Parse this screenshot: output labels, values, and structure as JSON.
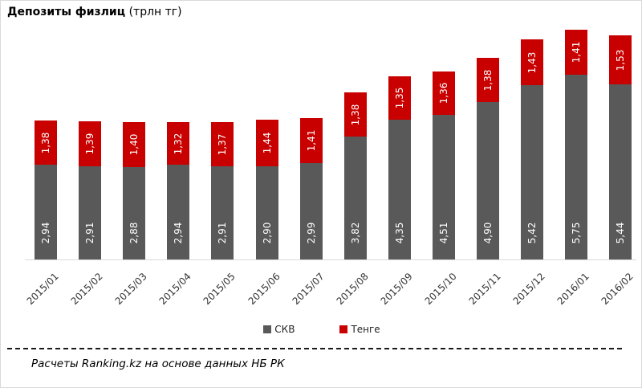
{
  "title": {
    "main": "Депозиты физлиц",
    "unit": "(трлн тг)"
  },
  "chart_data": {
    "type": "bar",
    "stacked": true,
    "title": "Депозиты физлиц (трлн тг)",
    "xlabel": "",
    "ylabel": "трлн тг",
    "ylim": [
      0,
      8
    ],
    "grid": false,
    "legend_position": "bottom",
    "categories": [
      "2015/01",
      "2015/02",
      "2015/03",
      "2015/04",
      "2015/05",
      "2015/06",
      "2015/07",
      "2015/08",
      "2015/09",
      "2015/10",
      "2015/11",
      "2015/12",
      "2016/01",
      "2016/02"
    ],
    "series": [
      {
        "name": "СКВ",
        "color": "#595959",
        "values": [
          2.94,
          2.91,
          2.88,
          2.94,
          2.91,
          2.9,
          2.99,
          3.82,
          4.35,
          4.51,
          4.9,
          5.42,
          5.75,
          5.44
        ],
        "labels": [
          "2,94",
          "2,91",
          "2,88",
          "2,94",
          "2,91",
          "2,90",
          "2,99",
          "3,82",
          "4,35",
          "4,51",
          "4,90",
          "5,42",
          "5,75",
          "5,44"
        ]
      },
      {
        "name": "Тенге",
        "color": "#C80000",
        "values": [
          1.38,
          1.39,
          1.4,
          1.32,
          1.37,
          1.44,
          1.41,
          1.38,
          1.35,
          1.36,
          1.38,
          1.43,
          1.41,
          1.53
        ],
        "labels": [
          "1,38",
          "1,39",
          "1,40",
          "1,32",
          "1,37",
          "1,44",
          "1,41",
          "1,38",
          "1,35",
          "1,36",
          "1,38",
          "1,43",
          "1,41",
          "1,53"
        ]
      }
    ]
  },
  "legend": {
    "items": [
      {
        "label": "СКВ",
        "color": "#595959"
      },
      {
        "label": "Тенге",
        "color": "#C80000"
      }
    ]
  },
  "footer": {
    "source_note": "Расчеты Ranking.kz на основе данных НБ РК"
  }
}
